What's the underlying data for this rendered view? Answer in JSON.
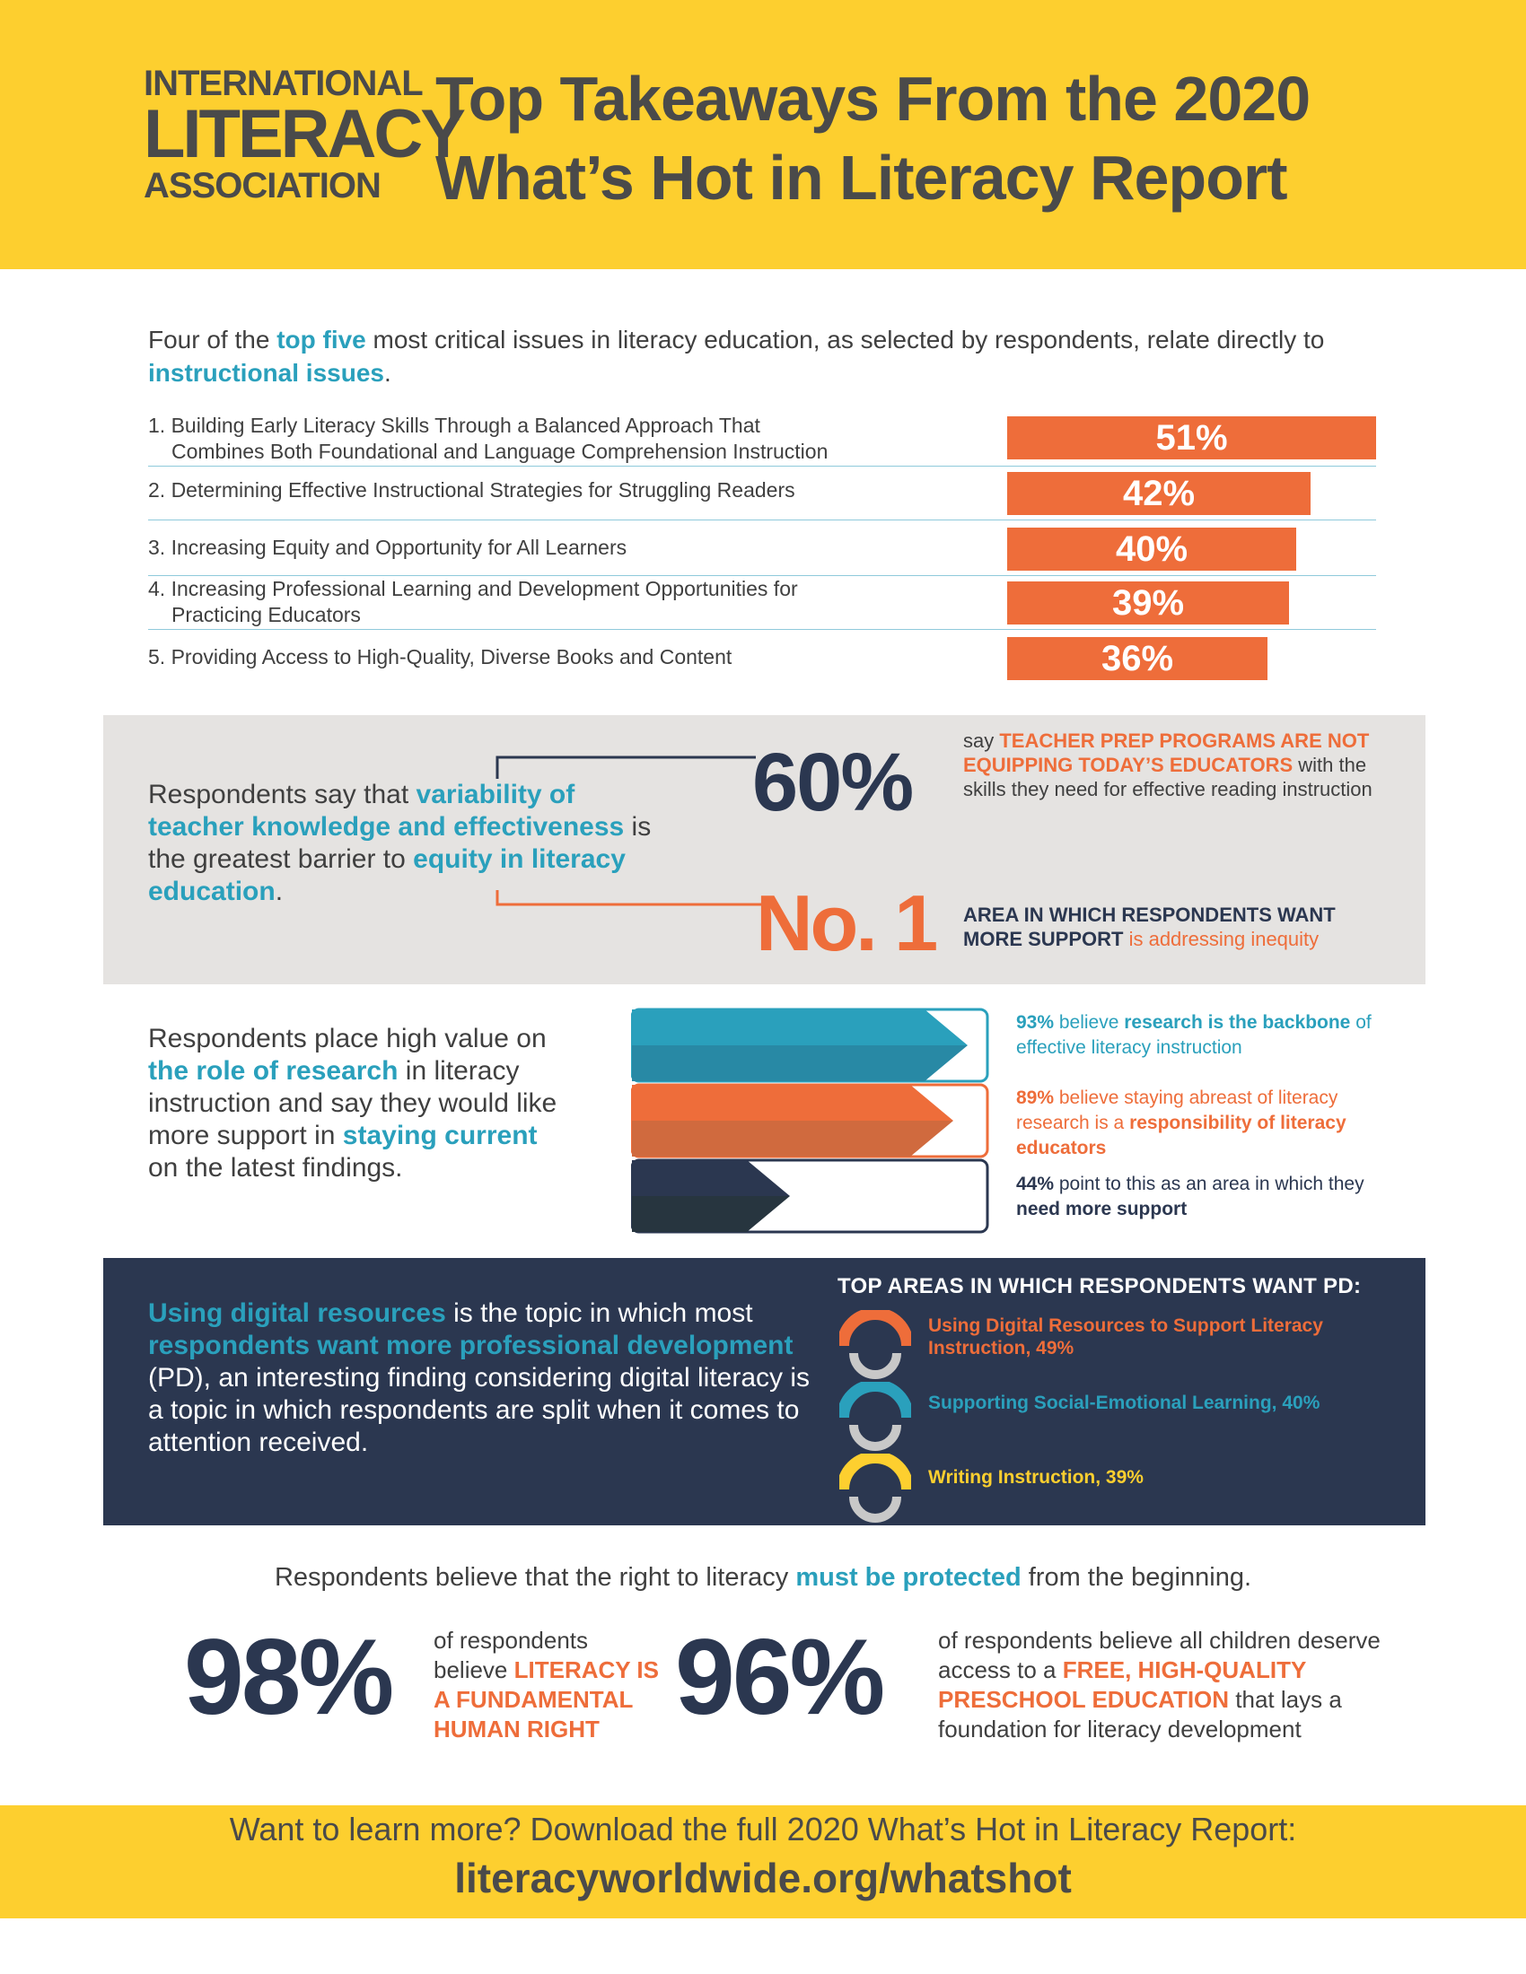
{
  "header": {
    "logo_line1": "INTERNATIONAL",
    "logo_line2": "LITERACY",
    "logo_line3": "ASSOCIATION",
    "title_line1": "Top Takeaways From the 2020",
    "title_line2": "What’s Hot in Literacy Report"
  },
  "issues_section": {
    "intro_p1": "Four of the ",
    "intro_hl1": "top five",
    "intro_p2": " most critical issues in literacy education, as selected by respondents, relate directly to ",
    "intro_hl2": "instructional issues",
    "intro_p3": ".",
    "items": [
      {
        "line1": "1. Building Early Literacy Skills Through a Balanced Approach That",
        "line2": "Combines Both Foundational and Language Comprehension Instruction",
        "value": "51%",
        "fraction": 0.51
      },
      {
        "line1": "2. Determining Effective Instructional Strategies for Struggling Readers",
        "line2": "",
        "value": "42%",
        "fraction": 0.42
      },
      {
        "line1": "3. Increasing Equity and Opportunity for All Learners",
        "line2": "",
        "value": "40%",
        "fraction": 0.4
      },
      {
        "line1": "4. Increasing Professional Learning and Development Opportunities for",
        "line2": "Practicing Educators",
        "value": "39%",
        "fraction": 0.39
      },
      {
        "line1": "5. Providing Access to High-Quality, Diverse Books and Content",
        "line2": "",
        "value": "36%",
        "fraction": 0.36
      }
    ]
  },
  "teacher_section": {
    "text_p1": "Respondents say that ",
    "text_hl1": "variability of teacher knowledge and effectiveness",
    "text_p2": " is the greatest barrier to ",
    "text_hl2": "equity in literacy education",
    "text_p3": ".",
    "stat1_value": "60%",
    "stat1_pre": "say ",
    "stat1_hl": "TEACHER PREP PROGRAMS ARE NOT EQUIPPING TODAY’S EDUCATORS",
    "stat1_post": " with the skills they need for effective reading instruction",
    "stat2_value": "No. 1",
    "stat2_hl": "AREA IN WHICH RESPONDENTS WANT MORE SUPPORT",
    "stat2_post": " is addressing inequity"
  },
  "research_section": {
    "text_p1": "Respondents place high value on ",
    "text_hl1": "the role of research",
    "text_p2": " in literacy instruction and say they would like more support in ",
    "text_hl2": "staying current",
    "text_p3": " on the latest findings.",
    "items": [
      {
        "pct": "93%",
        "fraction": 0.93,
        "pre": " believe ",
        "hl": "research is the backbone",
        "post": " of effective literacy instruction",
        "color": "#2aa0bc"
      },
      {
        "pct": "89%",
        "fraction": 0.89,
        "pre": " believe staying abreast of literacy research is a ",
        "hl": "responsibility of literacy educators",
        "post": "",
        "color": "#ee6d3a"
      },
      {
        "pct": "44%",
        "fraction": 0.44,
        "pre": " point to this as an area in which they ",
        "hl": "need more support",
        "post": "",
        "color": "#2b3750"
      }
    ]
  },
  "pd_section": {
    "text_hl1": "Using digital resources",
    "text_p1": " is the topic in which most ",
    "text_hl2": "respondents want more professional development",
    "text_p2": " (PD), an interesting finding considering digital literacy is a topic in which respondents are split when it comes to attention received.",
    "heading": "TOP AREAS IN WHICH RESPONDENTS WANT PD:",
    "items": [
      {
        "label": "Using Digital Resources to Support Literacy Instruction, 49%",
        "color": "#ee6d3a",
        "icon": "orange-arc-icon"
      },
      {
        "label": "Supporting Social-Emotional Learning, 40%",
        "color": "#2aa0bc",
        "icon": "teal-arc-icon"
      },
      {
        "label": "Writing Instruction, 39%",
        "color": "#fdcf2f",
        "icon": "yellow-arc-icon"
      }
    ]
  },
  "rights_section": {
    "heading_p1": "Respondents believe that the right to literacy ",
    "heading_hl": "must be protected",
    "heading_p2": " from the beginning.",
    "stat1_value": "98%",
    "stat1_pre": "of respondents believe ",
    "stat1_hl": "LITERACY IS A FUNDAMENTAL HUMAN RIGHT",
    "stat2_value": "96%",
    "stat2_pre": "of respondents believe all children deserve access to a ",
    "stat2_hl": "FREE, HIGH-QUALITY PRESCHOOL EDUCATION",
    "stat2_post": " that lays a foundation for literacy development"
  },
  "footer": {
    "line1": "Want to learn more? Download the full 2020 What’s Hot in Literacy Report:",
    "link": "literacyworldwide.org/whatshot"
  }
}
